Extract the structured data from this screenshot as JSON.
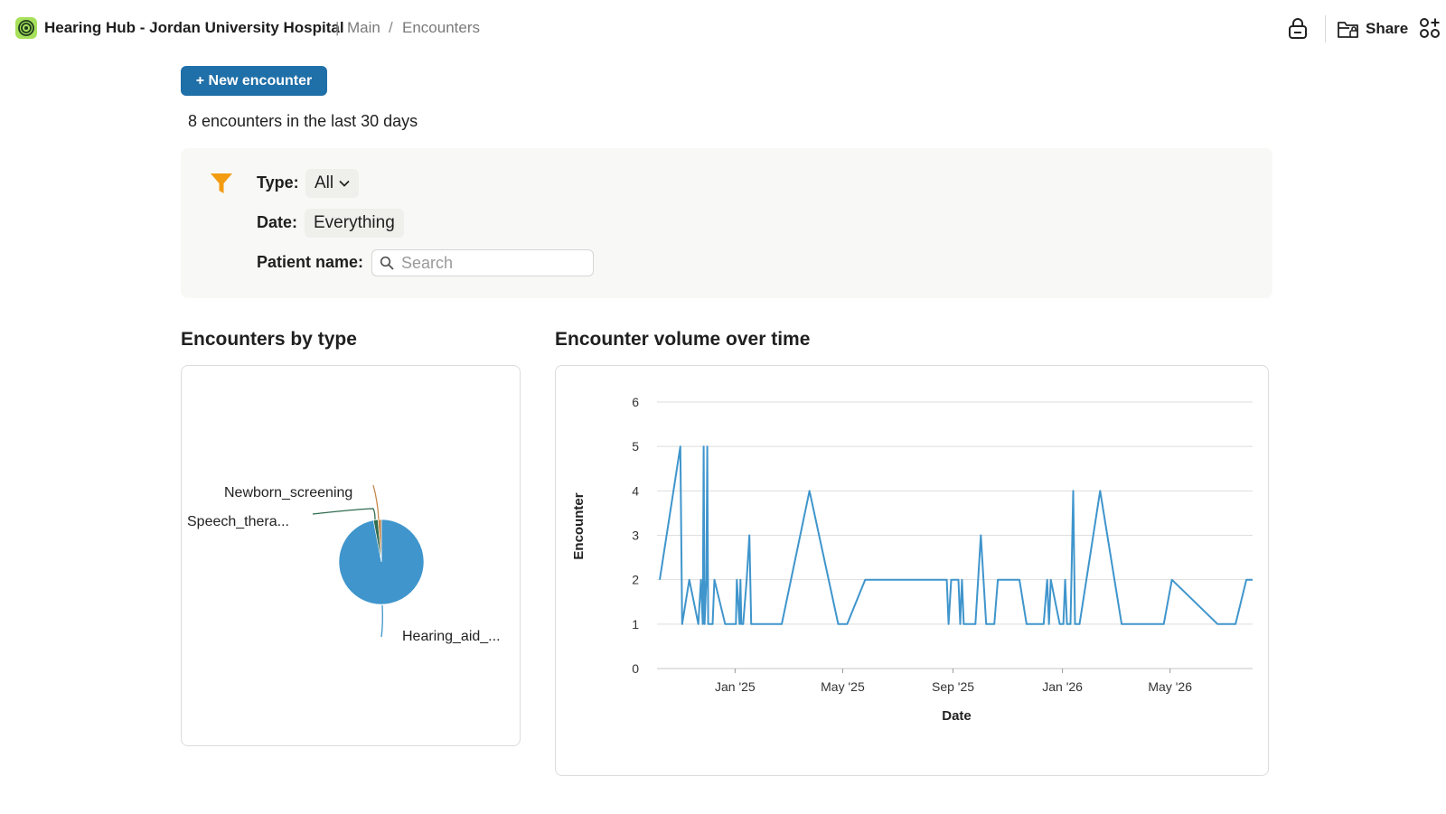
{
  "header": {
    "app_title": "Hearing Hub - Jordan University Hospital",
    "separator": "|",
    "breadcrumb": [
      "Main",
      "Encounters"
    ],
    "breadcrumb_separator": "/",
    "share_label": "Share",
    "icons": [
      "target-logo-icon",
      "lock-icon",
      "share-folder-icon",
      "apps-grid-icon"
    ]
  },
  "toolbar": {
    "new_encounter_label": "+ New encounter"
  },
  "summary": {
    "count_text": "8 encounters in the last 30 days"
  },
  "filters": {
    "type_label": "Type:",
    "type_value": "All",
    "date_label": "Date:",
    "date_value": "Everything",
    "patient_label": "Patient name:",
    "patient_placeholder": "Search",
    "patient_value": ""
  },
  "colors": {
    "accent": "#1f6fa8",
    "series": "#3f95cc",
    "funnel": "#f39c12",
    "logo": "#a7e05a"
  },
  "pie_title": "Encounters by type",
  "line_title": "Encounter volume over time",
  "chart_data": [
    {
      "type": "pie",
      "slices": [
        {
          "label": "Hearing_aid_...",
          "value": 97.0,
          "color": "#3f95cc"
        },
        {
          "label": "Speech_thera...",
          "value": 1.7,
          "color": "#2f6b4f"
        },
        {
          "label": "Newborn_screening",
          "value": 1.3,
          "color": "#c8874a"
        }
      ]
    },
    {
      "type": "line",
      "xlabel": "Date",
      "ylabel": "Encounter",
      "xlim": [
        "2024-10-06",
        "2026-08-01"
      ],
      "ylim": [
        0,
        6
      ],
      "yticks": [
        0,
        1,
        2,
        3,
        4,
        5,
        6
      ],
      "xticks": [
        {
          "date": "2025-01-01",
          "label": "Jan '25"
        },
        {
          "date": "2025-05-01",
          "label": "May '25"
        },
        {
          "date": "2025-09-01",
          "label": "Sep '25"
        },
        {
          "date": "2026-01-01",
          "label": "Jan '26"
        },
        {
          "date": "2026-05-01",
          "label": "May '26"
        }
      ],
      "grid": true,
      "series": [
        {
          "points": [
            [
              "2024-10-09",
              2
            ],
            [
              "2024-11-01",
              5
            ],
            [
              "2024-11-03",
              1
            ],
            [
              "2024-11-11",
              2
            ],
            [
              "2024-11-21",
              1
            ],
            [
              "2024-11-24",
              2
            ],
            [
              "2024-11-26",
              1
            ],
            [
              "2024-11-27",
              5
            ],
            [
              "2024-11-28",
              1
            ],
            [
              "2024-11-30",
              2
            ],
            [
              "2024-12-01",
              5
            ],
            [
              "2024-12-02",
              1
            ],
            [
              "2024-12-07",
              1
            ],
            [
              "2024-12-09",
              2
            ],
            [
              "2024-12-21",
              1
            ],
            [
              "2024-12-31",
              1
            ],
            [
              "2025-01-02",
              1
            ],
            [
              "2025-01-03",
              2
            ],
            [
              "2025-01-06",
              1
            ],
            [
              "2025-01-07",
              2
            ],
            [
              "2025-01-08",
              1
            ],
            [
              "2025-01-10",
              1
            ],
            [
              "2025-01-14",
              2
            ],
            [
              "2025-01-17",
              3
            ],
            [
              "2025-01-19",
              1
            ],
            [
              "2025-02-22",
              1
            ],
            [
              "2025-03-25",
              4
            ],
            [
              "2025-04-26",
              1
            ],
            [
              "2025-05-06",
              1
            ],
            [
              "2025-05-26",
              2
            ],
            [
              "2025-08-25",
              2
            ],
            [
              "2025-08-27",
              1
            ],
            [
              "2025-08-30",
              2
            ],
            [
              "2025-09-07",
              2
            ],
            [
              "2025-09-09",
              1
            ],
            [
              "2025-09-11",
              2
            ],
            [
              "2025-09-13",
              1
            ],
            [
              "2025-09-26",
              1
            ],
            [
              "2025-10-02",
              3
            ],
            [
              "2025-10-08",
              1
            ],
            [
              "2025-10-17",
              1
            ],
            [
              "2025-10-21",
              2
            ],
            [
              "2025-11-14",
              2
            ],
            [
              "2025-11-22",
              1
            ],
            [
              "2025-12-11",
              1
            ],
            [
              "2025-12-15",
              2
            ],
            [
              "2025-12-17",
              1
            ],
            [
              "2025-12-19",
              2
            ],
            [
              "2025-12-29",
              1
            ],
            [
              "2026-01-02",
              1
            ],
            [
              "2026-01-04",
              2
            ],
            [
              "2026-01-06",
              1
            ],
            [
              "2026-01-10",
              1
            ],
            [
              "2026-01-13",
              4
            ],
            [
              "2026-01-15",
              1
            ],
            [
              "2026-01-20",
              1
            ],
            [
              "2026-02-12",
              4
            ],
            [
              "2026-03-08",
              1
            ],
            [
              "2026-04-24",
              1
            ],
            [
              "2026-05-03",
              2
            ],
            [
              "2026-06-23",
              1
            ],
            [
              "2026-07-13",
              1
            ],
            [
              "2026-07-25",
              2
            ],
            [
              "2026-08-01",
              2
            ]
          ]
        }
      ]
    }
  ]
}
